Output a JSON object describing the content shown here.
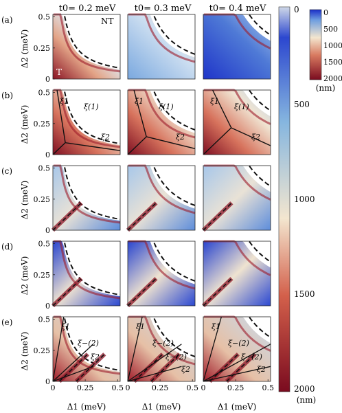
{
  "figure": {
    "row_labels": [
      "(a)",
      "(b)",
      "(c)",
      "(d)",
      "(e)"
    ],
    "column_titles": [
      "t0= 0.2 meV",
      "t0= 0.3 meV",
      "t0= 0.4 meV"
    ],
    "x_axis_label": "Δ1 (meV)",
    "y_axis_label": "Δ2 (meV)",
    "x_ticks": [
      "0",
      "0.25",
      "0.5"
    ],
    "y_ticks": [
      "0",
      "0.25",
      "0.5"
    ],
    "region_labels": {
      "nontopological": "NT",
      "topological": "T"
    },
    "colorbars": {
      "large": {
        "ticks": [
          "0",
          "500",
          "1000",
          "1500",
          "2000"
        ],
        "unit": "(nm)"
      },
      "small": {
        "ticks": [
          "0",
          "500",
          "1000",
          "1500",
          "2000"
        ],
        "unit": "(nm)"
      }
    },
    "row_b_annotations": {
      "col1": [
        "ξ1",
        "ξ(1)",
        "ξ2"
      ],
      "col2": [
        "ξ1",
        "ξ(1)",
        "ξ2"
      ],
      "col3": [
        "ξ1",
        "ξ(1)",
        "ξ2"
      ]
    },
    "row_e_annotations": {
      "col1": [
        "ξ1",
        "ξ−(2)",
        "ξ2"
      ],
      "col2": [
        "ξ1",
        "ξ−(2)",
        "ξ−(2)",
        "ξ2"
      ],
      "col3": [
        "ξ1",
        "ξ−(2)",
        "ξ−(2)",
        "ξ2"
      ]
    },
    "colors": {
      "min": "#7a0b1f",
      "mid": "#f3e6cf",
      "max": "#1a2ec8",
      "colorbar_top": "#cfd8e8"
    }
  }
}
